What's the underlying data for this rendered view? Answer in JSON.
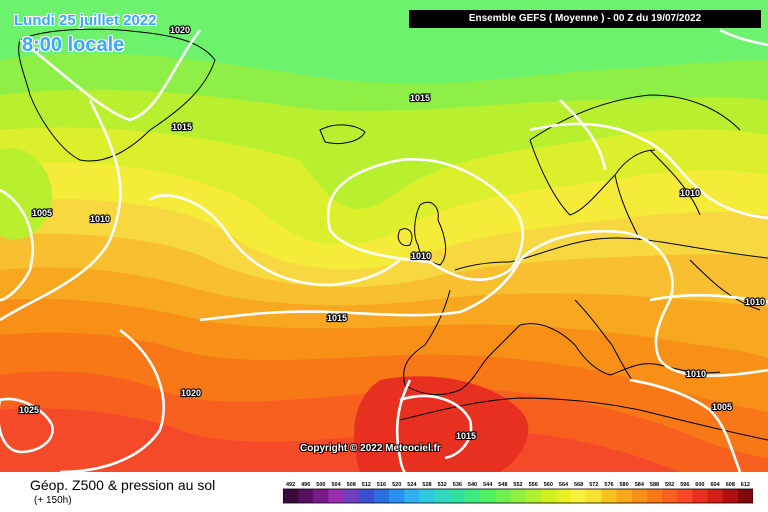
{
  "header": {
    "date": "Lundi 25 juillet 2022",
    "local_time": "8:00 locale",
    "run_info": "Ensemble GEFS  ( Moyenne )  - 00 Z du 19/07/2022"
  },
  "copyright": "Copyright © 2022 Meteociel.fr",
  "footer": {
    "field_title": "Géop. Z500 & pression au sol",
    "lead_time": "(+ 150h)"
  },
  "isobar_labels": [
    "1020",
    "1015",
    "1005",
    "1010",
    "1015",
    "1010",
    "1010",
    "1015",
    "1010",
    "1020",
    "1010",
    "1025",
    "1015",
    "1005"
  ],
  "color_scale": {
    "levels": [
      "492",
      "496",
      "500",
      "504",
      "508",
      "512",
      "516",
      "520",
      "524",
      "528",
      "532",
      "536",
      "540",
      "544",
      "548",
      "552",
      "556",
      "560",
      "564",
      "568",
      "572",
      "576",
      "580",
      "584",
      "588",
      "592",
      "596",
      "600",
      "604",
      "608",
      "612"
    ],
    "colors": [
      "#3a0a3a",
      "#5a1060",
      "#7a1a88",
      "#9a30b0",
      "#7040c0",
      "#3a50d0",
      "#2a70e0",
      "#2a90f0",
      "#30b0f0",
      "#30c8e0",
      "#30d8c0",
      "#30e0a0",
      "#40e880",
      "#50f060",
      "#70f050",
      "#90f040",
      "#b0f030",
      "#d0f020",
      "#e8f020",
      "#f8f040",
      "#f8e030",
      "#f8c020",
      "#f8a818",
      "#f89018",
      "#f87818",
      "#f86020",
      "#f84828",
      "#e83020",
      "#d02018",
      "#b01010",
      "#800808"
    ],
    "map_fill_colors": [
      "#6cf26c",
      "#8ef046",
      "#b8ef2e",
      "#dcef2c",
      "#f5ec3a",
      "#f8d840",
      "#f8c030",
      "#f8a820",
      "#f89018",
      "#f87818",
      "#f86020",
      "#f54a2a",
      "#e83020"
    ]
  }
}
